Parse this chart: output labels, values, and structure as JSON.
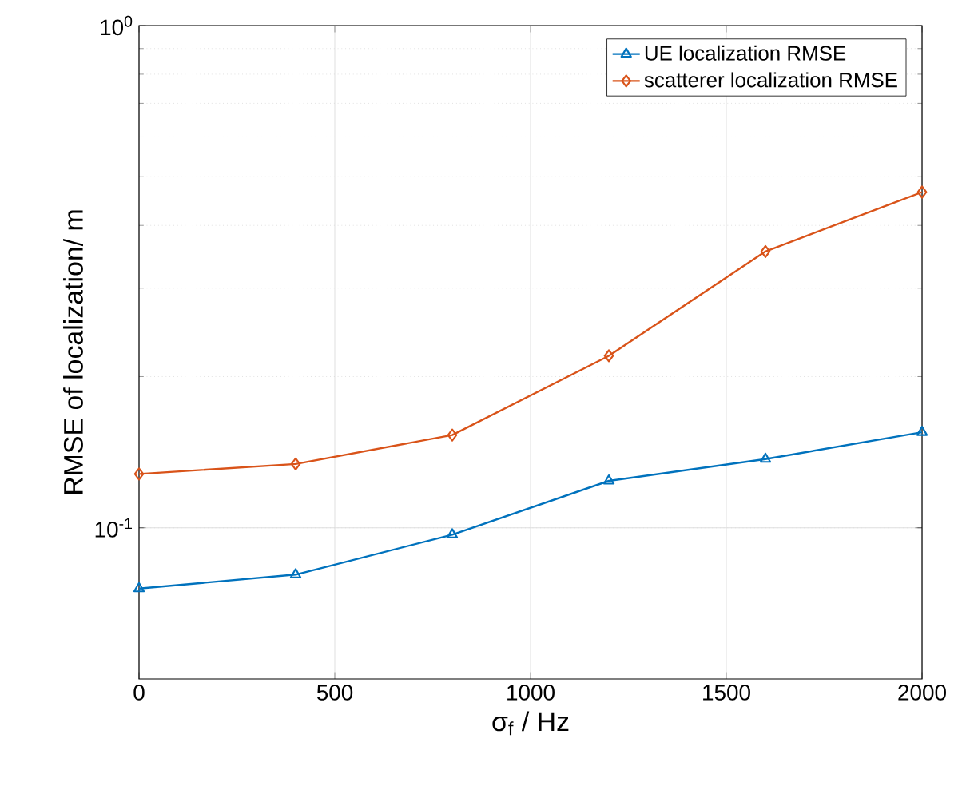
{
  "chart_data": {
    "type": "line",
    "xlabel": "σ$_{f}$ / Hz",
    "ylabel": "RMSE of localization/ m",
    "x": [
      0,
      400,
      800,
      1200,
      1600,
      2000
    ],
    "series": [
      {
        "name": "UE localization RMSE",
        "color": "#0072bd",
        "marker": "triangle",
        "values": [
          0.0757,
          0.0807,
          0.0969,
          0.124,
          0.137,
          0.155
        ]
      },
      {
        "name": "scatterer localization RMSE",
        "color": "#d95319",
        "marker": "diamond",
        "values": [
          0.128,
          0.134,
          0.153,
          0.22,
          0.355,
          0.466
        ]
      }
    ],
    "log": "y",
    "xlim": [
      0,
      2000
    ],
    "ylim": [
      0.05,
      1
    ],
    "xticks": [
      0,
      500,
      1000,
      1500,
      2000
    ],
    "yticks": [
      {
        "value": 0.1,
        "label": "10$^{-1}$"
      },
      {
        "value": 1,
        "label": "10$^{0}$"
      }
    ],
    "grid": true,
    "legend": "top right",
    "line_style": "solid"
  }
}
